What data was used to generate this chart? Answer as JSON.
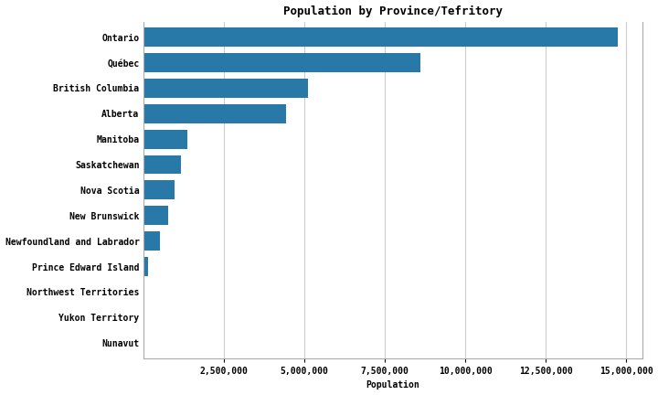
{
  "title": "Population by Province/Tefritory",
  "xlabel": "Population",
  "provinces": [
    "Ontario",
    "Québec",
    "British Columbia",
    "Alberta",
    "Manitoba",
    "Saskatchewan",
    "Nova Scotia",
    "New Brunswick",
    "Newfoundland and Labrador",
    "Prince Edward Island",
    "Northwest Territories",
    "Yukon Territory",
    "Nunavut"
  ],
  "populations": [
    14734014,
    8604495,
    5110917,
    4436258,
    1360396,
    1177884,
    971395,
    776827,
    521922,
    154748,
    44826,
    40232,
    35944
  ],
  "bar_color": "#2878a8",
  "background_color": "#ffffff",
  "xlim": [
    0,
    15500000
  ],
  "xticks": [
    2500000,
    5000000,
    7500000,
    10000000,
    12500000,
    15000000
  ],
  "grid_color": "#cccccc",
  "title_fontsize": 9,
  "label_fontsize": 7,
  "tick_fontsize": 7,
  "bar_height": 0.75
}
